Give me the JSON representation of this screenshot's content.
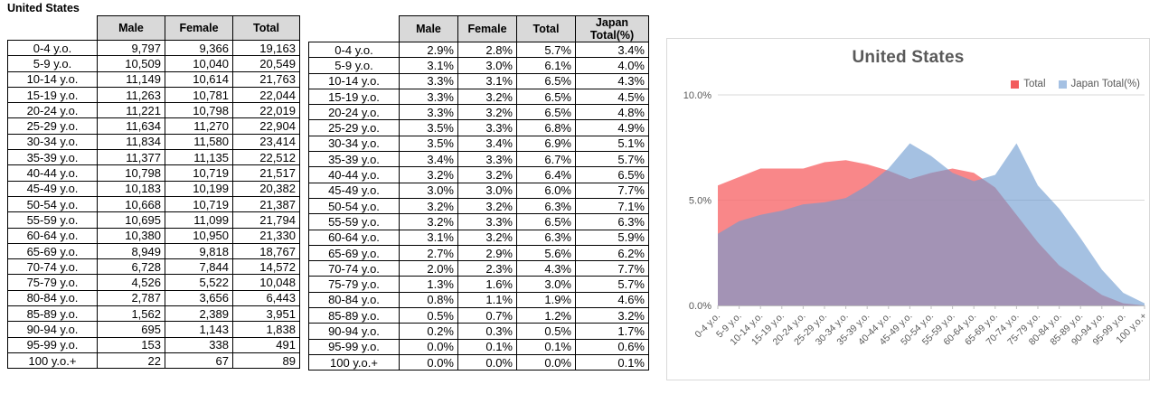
{
  "sheet": {
    "title": "United States"
  },
  "tables": [
    {
      "name": "population-counts",
      "columns": [
        "",
        "Male",
        "Female",
        "Total"
      ],
      "rows": [
        [
          "0-4 y.o.",
          "9,797",
          "9,366",
          "19,163"
        ],
        [
          "5-9 y.o.",
          "10,509",
          "10,040",
          "20,549"
        ],
        [
          "10-14 y.o.",
          "11,149",
          "10,614",
          "21,763"
        ],
        [
          "15-19 y.o.",
          "11,263",
          "10,781",
          "22,044"
        ],
        [
          "20-24 y.o.",
          "11,221",
          "10,798",
          "22,019"
        ],
        [
          "25-29 y.o.",
          "11,634",
          "11,270",
          "22,904"
        ],
        [
          "30-34 y.o.",
          "11,834",
          "11,580",
          "23,414"
        ],
        [
          "35-39 y.o.",
          "11,377",
          "11,135",
          "22,512"
        ],
        [
          "40-44 y.o.",
          "10,798",
          "10,719",
          "21,517"
        ],
        [
          "45-49 y.o.",
          "10,183",
          "10,199",
          "20,382"
        ],
        [
          "50-54 y.o.",
          "10,668",
          "10,719",
          "21,387"
        ],
        [
          "55-59 y.o.",
          "10,695",
          "11,099",
          "21,794"
        ],
        [
          "60-64 y.o.",
          "10,380",
          "10,950",
          "21,330"
        ],
        [
          "65-69 y.o.",
          "8,949",
          "9,818",
          "18,767"
        ],
        [
          "70-74 y.o.",
          "6,728",
          "7,844",
          "14,572"
        ],
        [
          "75-79 y.o.",
          "4,526",
          "5,522",
          "10,048"
        ],
        [
          "80-84 y.o.",
          "2,787",
          "3,656",
          "6,443"
        ],
        [
          "85-89 y.o.",
          "1,562",
          "2,389",
          "3,951"
        ],
        [
          "90-94 y.o.",
          "695",
          "1,143",
          "1,838"
        ],
        [
          "95-99 y.o.",
          "153",
          "338",
          "491"
        ],
        [
          "100 y.o.+",
          "22",
          "67",
          "89"
        ]
      ]
    },
    {
      "name": "population-percentages",
      "columns": [
        "",
        "Male",
        "Female",
        "Total",
        "Japan Total(%)"
      ],
      "rows": [
        [
          "0-4 y.o.",
          "2.9%",
          "2.8%",
          "5.7%",
          "3.4%"
        ],
        [
          "5-9 y.o.",
          "3.1%",
          "3.0%",
          "6.1%",
          "4.0%"
        ],
        [
          "10-14 y.o.",
          "3.3%",
          "3.1%",
          "6.5%",
          "4.3%"
        ],
        [
          "15-19 y.o.",
          "3.3%",
          "3.2%",
          "6.5%",
          "4.5%"
        ],
        [
          "20-24 y.o.",
          "3.3%",
          "3.2%",
          "6.5%",
          "4.8%"
        ],
        [
          "25-29 y.o.",
          "3.5%",
          "3.3%",
          "6.8%",
          "4.9%"
        ],
        [
          "30-34 y.o.",
          "3.5%",
          "3.4%",
          "6.9%",
          "5.1%"
        ],
        [
          "35-39 y.o.",
          "3.4%",
          "3.3%",
          "6.7%",
          "5.7%"
        ],
        [
          "40-44 y.o.",
          "3.2%",
          "3.2%",
          "6.4%",
          "6.5%"
        ],
        [
          "45-49 y.o.",
          "3.0%",
          "3.0%",
          "6.0%",
          "7.7%"
        ],
        [
          "50-54 y.o.",
          "3.2%",
          "3.2%",
          "6.3%",
          "7.1%"
        ],
        [
          "55-59 y.o.",
          "3.2%",
          "3.3%",
          "6.5%",
          "6.3%"
        ],
        [
          "60-64 y.o.",
          "3.1%",
          "3.2%",
          "6.3%",
          "5.9%"
        ],
        [
          "65-69 y.o.",
          "2.7%",
          "2.9%",
          "5.6%",
          "6.2%"
        ],
        [
          "70-74 y.o.",
          "2.0%",
          "2.3%",
          "4.3%",
          "7.7%"
        ],
        [
          "75-79 y.o.",
          "1.3%",
          "1.6%",
          "3.0%",
          "5.7%"
        ],
        [
          "80-84 y.o.",
          "0.8%",
          "1.1%",
          "1.9%",
          "4.6%"
        ],
        [
          "85-89 y.o.",
          "0.5%",
          "0.7%",
          "1.2%",
          "3.2%"
        ],
        [
          "90-94 y.o.",
          "0.2%",
          "0.3%",
          "0.5%",
          "1.7%"
        ],
        [
          "95-99 y.o.",
          "0.0%",
          "0.1%",
          "0.1%",
          "0.6%"
        ],
        [
          "100 y.o.+",
          "0.0%",
          "0.0%",
          "0.0%",
          "0.1%"
        ]
      ]
    }
  ],
  "chart_data": {
    "type": "area",
    "title": "United States",
    "categories": [
      "0-4 y.o.",
      "5-9 y.o.",
      "10-14 y.o.",
      "15-19 y.o.",
      "20-24 y.o.",
      "25-29 y.o.",
      "30-34 y.o.",
      "35-39 y.o.",
      "40-44 y.o.",
      "45-49 y.o.",
      "50-54 y.o.",
      "55-59 y.o.",
      "60-64 y.o.",
      "65-69 y.o.",
      "70-74 y.o.",
      "75-79 y.o.",
      "80-84 y.o.",
      "85-89 y.o.",
      "90-94 y.o.",
      "95-99 y.o.",
      "100 y.o.+"
    ],
    "series": [
      {
        "name": "Total",
        "color": "#F25B5C",
        "fill": "rgba(248,105,107,0.80)",
        "values": [
          5.7,
          6.1,
          6.5,
          6.5,
          6.5,
          6.8,
          6.9,
          6.7,
          6.4,
          6.0,
          6.3,
          6.5,
          6.3,
          5.6,
          4.3,
          3.0,
          1.9,
          1.2,
          0.5,
          0.1,
          0.0
        ]
      },
      {
        "name": "Japan Total(%)",
        "color": "#A5C1E3",
        "fill": "rgba(110,155,209,0.62)",
        "values": [
          3.4,
          4.0,
          4.3,
          4.5,
          4.8,
          4.9,
          5.1,
          5.7,
          6.5,
          7.7,
          7.1,
          6.3,
          5.9,
          6.2,
          7.7,
          5.7,
          4.6,
          3.2,
          1.7,
          0.6,
          0.1
        ]
      }
    ],
    "ylim": [
      0,
      10
    ],
    "yticks": [
      {
        "label": "0.0%",
        "value": 0
      },
      {
        "label": "5.0%",
        "value": 5
      },
      {
        "label": "10.0%",
        "value": 10
      }
    ],
    "xlabel": "",
    "ylabel": "",
    "legend_position": "top-right",
    "grid": true,
    "colors": {
      "grid_line": "#D9D9D9",
      "axis_line": "#BFBFBF",
      "axis_text": "#595959",
      "title_text": "#595959",
      "header_fill": "#D9D9D9"
    }
  }
}
